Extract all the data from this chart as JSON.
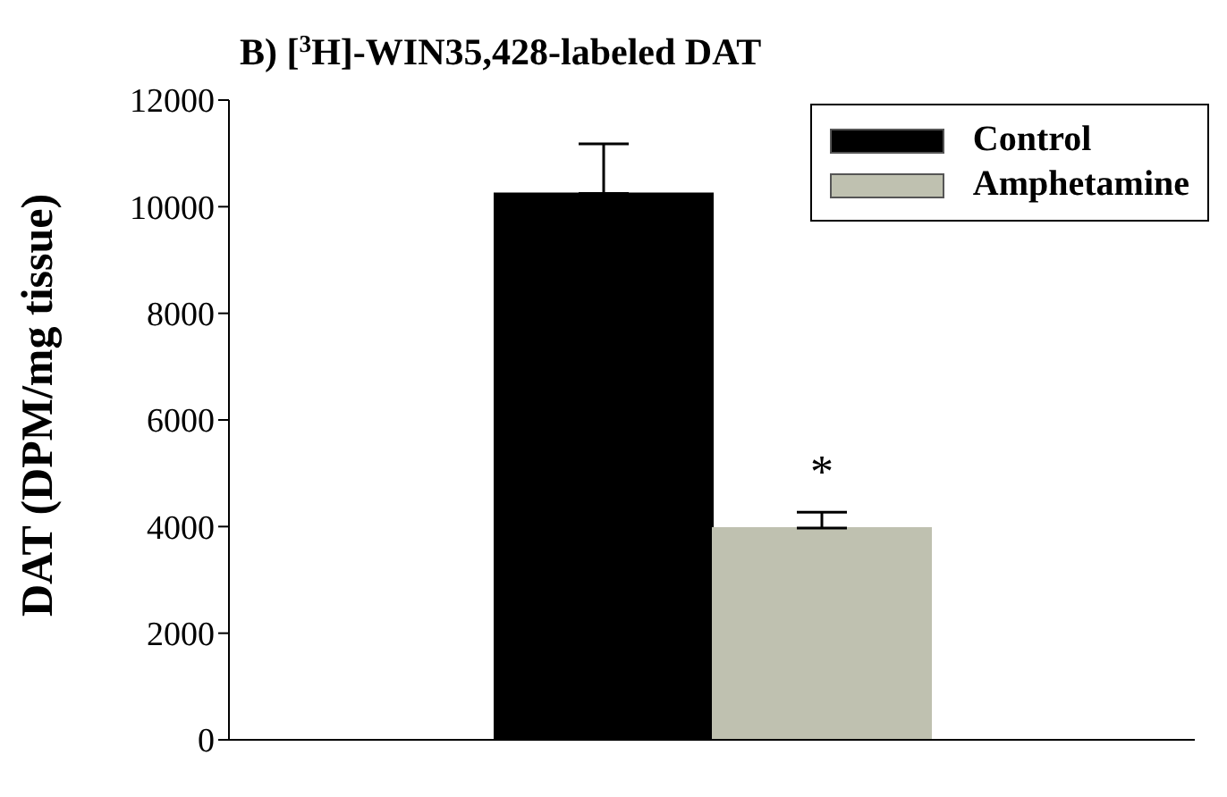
{
  "chart_data": {
    "type": "bar",
    "title": "B) [$^{3}$H]-WIN35,428-labeled DAT",
    "ylabel": "DAT (DPM/mg tissue)",
    "categories": [
      null
    ],
    "series": [
      {
        "name": "Control",
        "color": "#000000",
        "values": [
          10250
        ],
        "errors": [
          [
            10250,
            11180
          ]
        ]
      },
      {
        "name": "Amphetamine",
        "color": "#bfc1b0",
        "values": [
          3970
        ],
        "errors": [
          [
            3970,
            4270
          ]
        ]
      }
    ],
    "annotations": [
      "*"
    ],
    "ylim": [
      0,
      12000
    ],
    "yticks": [
      0,
      2000,
      4000,
      6000,
      8000,
      10000,
      12000
    ],
    "grid": false,
    "legend": "top right"
  }
}
